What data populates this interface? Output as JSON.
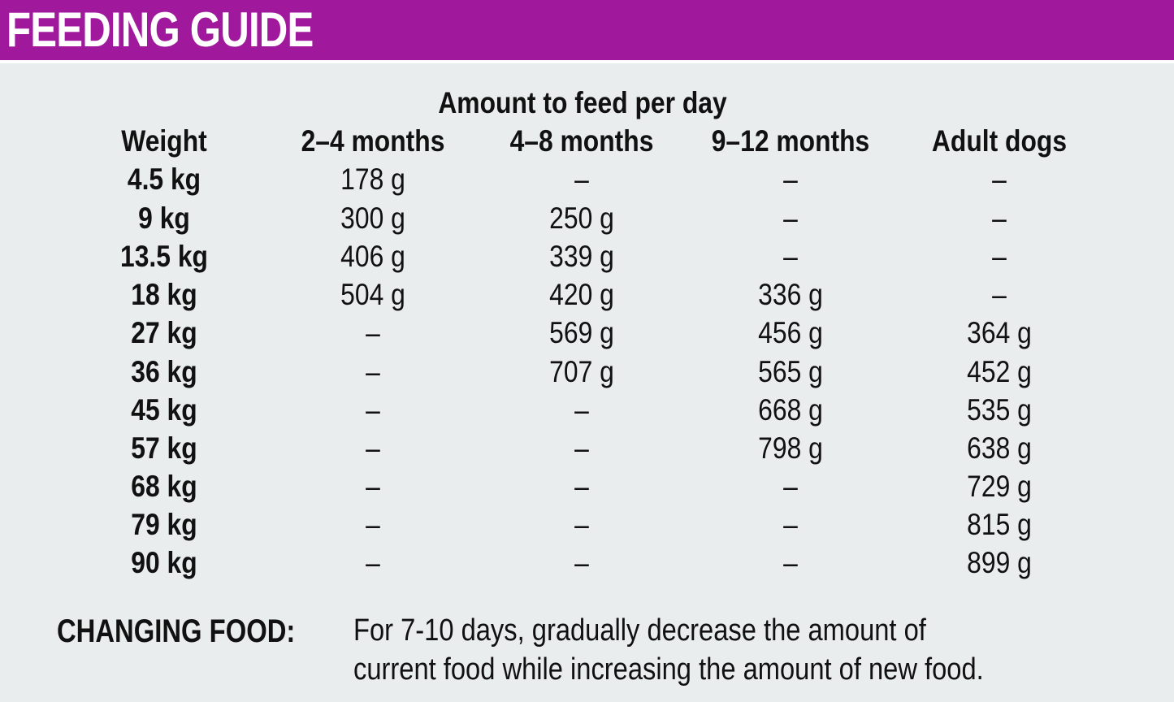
{
  "header": {
    "title": "FEEDING GUIDE",
    "background": "#a0189c"
  },
  "table": {
    "super_header": "Amount to feed per day",
    "columns": [
      "Weight",
      "2–4 months",
      "4–8 months",
      "9–12 months",
      "Adult dogs"
    ],
    "rows": [
      [
        "4.5 kg",
        "178 g",
        "–",
        "–",
        "–"
      ],
      [
        "9 kg",
        "300 g",
        "250 g",
        "–",
        "–"
      ],
      [
        "13.5 kg",
        "406 g",
        "339 g",
        "–",
        "–"
      ],
      [
        "18 kg",
        "504 g",
        "420 g",
        "336 g",
        "–"
      ],
      [
        "27 kg",
        "–",
        "569 g",
        "456 g",
        "364 g"
      ],
      [
        "36 kg",
        "–",
        "707 g",
        "565 g",
        "452 g"
      ],
      [
        "45 kg",
        "–",
        "–",
        "668 g",
        "535 g"
      ],
      [
        "57 kg",
        "–",
        "–",
        "798 g",
        "638 g"
      ],
      [
        "68 kg",
        "–",
        "–",
        "–",
        "729 g"
      ],
      [
        "79 kg",
        "–",
        "–",
        "–",
        "815 g"
      ],
      [
        "90 kg",
        "–",
        "–",
        "–",
        "899 g"
      ]
    ]
  },
  "note": {
    "label": "CHANGING FOOD:",
    "lines": [
      "For 7-10 days, gradually decrease the amount of",
      "current food while increasing the amount of new food."
    ]
  },
  "colors": {
    "page_background": "#e9eded",
    "header_background": "#a0189c",
    "header_text": "#ffffff",
    "text": "#111111"
  }
}
